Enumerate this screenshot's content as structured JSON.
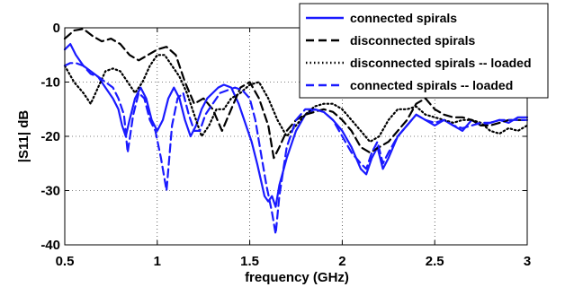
{
  "chart_data": {
    "type": "line",
    "xlabel": "frequency (GHz)",
    "ylabel": "|S11|  dB",
    "xlim": [
      0.5,
      3
    ],
    "ylim": [
      -40,
      0
    ],
    "xticks": [
      0.5,
      1,
      1.5,
      2,
      2.5,
      3
    ],
    "yticks": [
      0,
      -10,
      -20,
      -30,
      -40
    ],
    "xtick_labels": [
      "0.5",
      "1",
      "1.5",
      "2",
      "2.5",
      "3"
    ],
    "ytick_labels": [
      "0",
      "-10",
      "-20",
      "-30",
      "-40"
    ],
    "grid": true,
    "grid_style": "dotted",
    "legend_position": "top-right",
    "series": [
      {
        "name": "connected spirals",
        "color": "#1a1aff",
        "dash": "solid",
        "x": [
          0.5,
          0.53,
          0.56,
          0.6,
          0.64,
          0.68,
          0.72,
          0.76,
          0.79,
          0.81,
          0.83,
          0.85,
          0.88,
          0.91,
          0.94,
          0.97,
          1.0,
          1.03,
          1.06,
          1.09,
          1.12,
          1.15,
          1.18,
          1.21,
          1.24,
          1.27,
          1.3,
          1.33,
          1.36,
          1.4,
          1.44,
          1.48,
          1.51,
          1.54,
          1.56,
          1.58,
          1.6,
          1.62,
          1.64,
          1.66,
          1.7,
          1.75,
          1.8,
          1.85,
          1.9,
          1.95,
          2.0,
          2.05,
          2.1,
          2.13,
          2.16,
          2.19,
          2.22,
          2.25,
          2.3,
          2.35,
          2.4,
          2.45,
          2.5,
          2.55,
          2.6,
          2.65,
          2.7,
          2.75,
          2.8,
          2.85,
          2.9,
          2.95,
          3.0
        ],
        "y": [
          -4,
          -3,
          -5,
          -7,
          -8,
          -9,
          -11,
          -13,
          -15,
          -18,
          -20,
          -17,
          -13,
          -11,
          -13,
          -17,
          -19,
          -17,
          -13,
          -11,
          -13,
          -17,
          -20,
          -18,
          -15,
          -13,
          -12,
          -11,
          -10.5,
          -11,
          -14,
          -18,
          -21,
          -25,
          -28,
          -31,
          -32,
          -31,
          -33,
          -29,
          -24,
          -19,
          -16,
          -15,
          -15.5,
          -17,
          -19,
          -22,
          -26,
          -27,
          -24,
          -22,
          -26,
          -24,
          -20,
          -18,
          -16,
          -17,
          -18,
          -17,
          -18,
          -19,
          -17,
          -18,
          -17.5,
          -17,
          -17.5,
          -16.5,
          -16.5
        ]
      },
      {
        "name": "disconnected spirals",
        "color": "#000000",
        "dash": "dashed",
        "x": [
          0.5,
          0.55,
          0.6,
          0.65,
          0.7,
          0.75,
          0.8,
          0.85,
          0.9,
          0.95,
          1.0,
          1.05,
          1.1,
          1.15,
          1.2,
          1.25,
          1.3,
          1.35,
          1.4,
          1.45,
          1.5,
          1.55,
          1.6,
          1.63,
          1.66,
          1.7,
          1.75,
          1.8,
          1.85,
          1.9,
          1.95,
          2.0,
          2.05,
          2.1,
          2.15,
          2.2,
          2.25,
          2.3,
          2.35,
          2.4,
          2.45,
          2.5,
          2.55,
          2.6,
          2.65,
          2.7,
          2.75,
          2.8,
          2.85,
          2.9,
          2.95,
          3.0
        ],
        "y": [
          -2,
          -0.5,
          -0.2,
          -1.5,
          -2.5,
          -2,
          -3,
          -5,
          -6,
          -5,
          -4,
          -3.5,
          -5,
          -10,
          -14,
          -13,
          -15,
          -19,
          -15,
          -11,
          -10,
          -13,
          -18,
          -24,
          -22,
          -19,
          -17,
          -16,
          -15.5,
          -15,
          -15.5,
          -17,
          -19,
          -22,
          -23,
          -22,
          -21,
          -19,
          -17,
          -14,
          -13,
          -15,
          -16,
          -16.5,
          -16.5,
          -17,
          -18,
          -18,
          -17.5,
          -17,
          -17,
          -17
        ]
      },
      {
        "name": "disconnected spirals -- loaded",
        "color": "#000000",
        "dash": "dotted",
        "x": [
          0.5,
          0.55,
          0.6,
          0.64,
          0.68,
          0.72,
          0.76,
          0.8,
          0.84,
          0.88,
          0.92,
          0.96,
          1.0,
          1.04,
          1.08,
          1.12,
          1.16,
          1.2,
          1.24,
          1.28,
          1.32,
          1.36,
          1.4,
          1.45,
          1.5,
          1.55,
          1.6,
          1.65,
          1.7,
          1.75,
          1.8,
          1.85,
          1.9,
          1.95,
          2.0,
          2.05,
          2.1,
          2.15,
          2.2,
          2.25,
          2.3,
          2.35,
          2.4,
          2.45,
          2.5,
          2.55,
          2.6,
          2.65,
          2.7,
          2.75,
          2.8,
          2.85,
          2.9,
          2.95,
          3.0
        ],
        "y": [
          -7,
          -10,
          -12,
          -14,
          -11,
          -8,
          -7.5,
          -8,
          -10,
          -12,
          -10,
          -7,
          -5,
          -5,
          -7,
          -9,
          -12,
          -16,
          -20,
          -18,
          -15,
          -15,
          -13,
          -12,
          -10.5,
          -10,
          -13,
          -17,
          -20,
          -18,
          -16,
          -14.5,
          -14,
          -14,
          -15,
          -17,
          -19,
          -21,
          -20,
          -17,
          -15,
          -15,
          -14.5,
          -16,
          -16.5,
          -17,
          -17.5,
          -17,
          -17,
          -17.5,
          -19,
          -19.5,
          -18.5,
          -19,
          -18
        ]
      },
      {
        "name": "connected spirals -- loaded",
        "color": "#1a1aff",
        "dash": "dashed",
        "x": [
          0.5,
          0.53,
          0.56,
          0.6,
          0.64,
          0.68,
          0.72,
          0.76,
          0.79,
          0.82,
          0.84,
          0.87,
          0.9,
          0.93,
          0.96,
          0.99,
          1.02,
          1.05,
          1.08,
          1.11,
          1.14,
          1.17,
          1.2,
          1.23,
          1.26,
          1.3,
          1.34,
          1.38,
          1.42,
          1.46,
          1.5,
          1.53,
          1.56,
          1.59,
          1.62,
          1.64,
          1.66,
          1.7,
          1.75,
          1.8,
          1.85,
          1.9,
          1.95,
          2.0,
          2.05,
          2.1,
          2.13,
          2.16,
          2.19,
          2.22,
          2.25,
          2.3,
          2.35,
          2.4,
          2.45,
          2.5,
          2.55,
          2.6,
          2.65,
          2.7,
          2.75,
          2.8,
          2.85,
          2.9,
          2.95,
          3.0
        ],
        "y": [
          -7,
          -6.5,
          -6.5,
          -7,
          -8.5,
          -9,
          -10,
          -11,
          -13,
          -16,
          -23,
          -16,
          -12,
          -13,
          -17,
          -19,
          -24,
          -30,
          -18,
          -13,
          -12,
          -16,
          -19,
          -19,
          -16,
          -14,
          -12,
          -11.5,
          -11,
          -11.5,
          -13,
          -17,
          -23,
          -29,
          -34,
          -38,
          -31,
          -22,
          -17,
          -15,
          -15,
          -15.5,
          -17,
          -20,
          -23,
          -25,
          -26,
          -23,
          -21,
          -25,
          -23,
          -20,
          -18,
          -16,
          -17,
          -17.5,
          -17,
          -18,
          -18.5,
          -18,
          -17.5,
          -17.5,
          -17,
          -17,
          -17,
          -17
        ]
      }
    ]
  }
}
